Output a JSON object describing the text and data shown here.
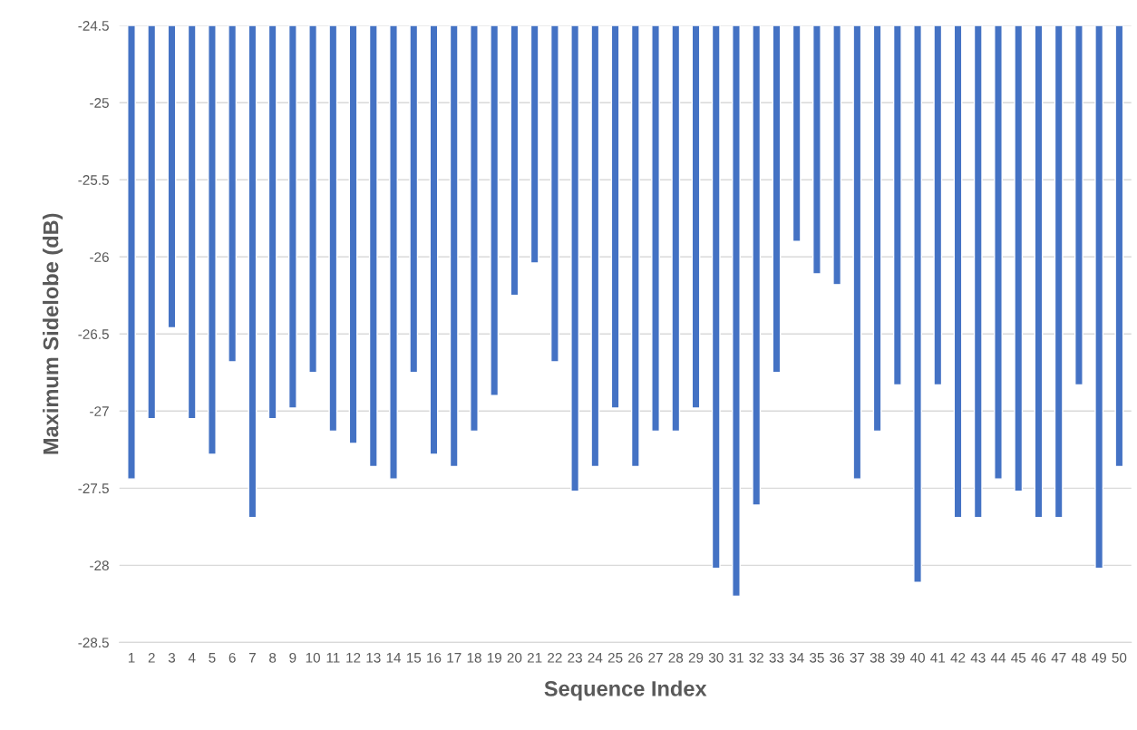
{
  "chart_data": {
    "type": "bar",
    "xlabel": "Sequence Index",
    "ylabel": "Maximum Sidelobe (dB)",
    "color": "#4472c4",
    "categories": [
      "1",
      "2",
      "3",
      "4",
      "5",
      "6",
      "7",
      "8",
      "9",
      "10",
      "11",
      "12",
      "13",
      "14",
      "15",
      "16",
      "17",
      "18",
      "19",
      "20",
      "21",
      "22",
      "23",
      "24",
      "25",
      "26",
      "27",
      "28",
      "29",
      "30",
      "31",
      "32",
      "33",
      "34",
      "35",
      "36",
      "37",
      "38",
      "39",
      "40",
      "41",
      "42",
      "43",
      "44",
      "45",
      "46",
      "47",
      "48",
      "49",
      "50"
    ],
    "values": [
      -27.44,
      -27.05,
      -26.46,
      -27.05,
      -27.28,
      -26.68,
      -27.69,
      -27.05,
      -26.98,
      -26.75,
      -27.13,
      -27.21,
      -27.36,
      -27.44,
      -26.75,
      -27.28,
      -27.36,
      -27.13,
      -26.9,
      -26.25,
      -26.04,
      -26.68,
      -27.52,
      -27.36,
      -26.98,
      -27.36,
      -27.13,
      -27.13,
      -26.98,
      -28.02,
      -28.2,
      -27.61,
      -26.75,
      -25.9,
      -26.11,
      -26.18,
      -27.44,
      -27.13,
      -26.83,
      -28.11,
      -26.83,
      -27.69,
      -27.69,
      -27.44,
      -27.52,
      -27.69,
      -27.69,
      -26.83,
      -28.02,
      -27.36
    ],
    "ylim": [
      -28.5,
      -24.5
    ],
    "yticks": [
      -28.5,
      -28,
      -27.5,
      -27,
      -26.5,
      -26,
      -25.5,
      -25,
      -24.5
    ],
    "grid": "y",
    "legend": false
  }
}
